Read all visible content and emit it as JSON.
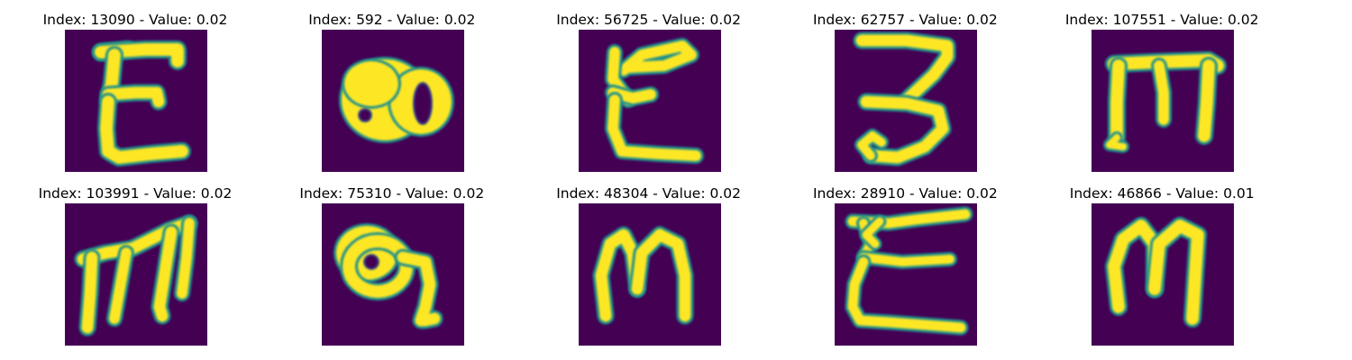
{
  "figure": {
    "background": "#ffffff",
    "colormap": "viridis",
    "image_background_color": "#440154",
    "stroke_color": "#fde725",
    "edge_color": "#21918c"
  },
  "panels": [
    {
      "title": "Index: 13090 - Value: 0.02",
      "glyph": "Ɛ-like character with serifs"
    },
    {
      "title": "Index: 592 - Value: 0.02",
      "glyph": "filled blob with two holes"
    },
    {
      "title": "Index: 56725 - Value: 0.02",
      "glyph": "Ɛ-like curved character"
    },
    {
      "title": "Index: 62757 - Value: 0.02",
      "glyph": "3-like character with loop"
    },
    {
      "title": "Index: 107551 - Value: 0.02",
      "glyph": "m-like character with top bar"
    },
    {
      "title": "Index: 103991 - Value: 0.02",
      "glyph": "m-like character"
    },
    {
      "title": "Index: 75310 - Value: 0.02",
      "glyph": "loop with tail character"
    },
    {
      "title": "Index: 48304 - Value: 0.02",
      "glyph": "m-like rounded character"
    },
    {
      "title": "Index: 28910 - Value: 0.02",
      "glyph": "Ɛ-like character with long bars"
    },
    {
      "title": "Index: 46866 - Value: 0.01",
      "glyph": "m-like rounded character"
    }
  ]
}
